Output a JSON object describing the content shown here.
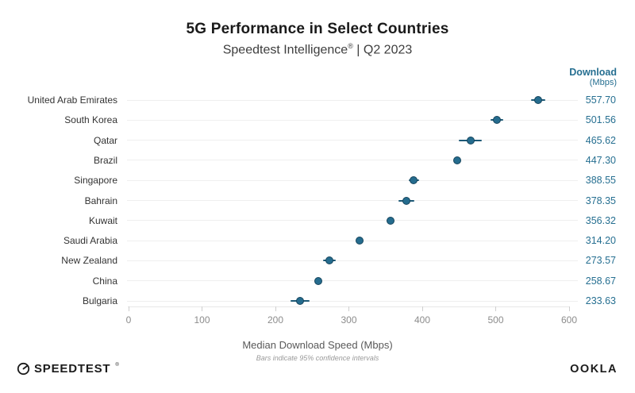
{
  "header": {
    "subtitle_brand": "Speedtest Intelligence",
    "subtitle_mark": "®",
    "subtitle_period": " | Q2 2023"
  },
  "value_column": {
    "title": "Download",
    "unit": "(Mbps)"
  },
  "x_axis": {
    "label": "Median Download Speed (Mbps)",
    "caption": "Bars indicate 95% confidence intervals",
    "ticks": [
      0,
      100,
      200,
      300,
      400,
      500,
      600
    ]
  },
  "footer": {
    "speedtest_wordmark": "SPEEDTEST",
    "speedtest_mark": "®",
    "ookla_wordmark": "OOKLA"
  },
  "colors": {
    "accent": "#266F91",
    "dot_fill": "#256C8E",
    "dot_border": "#16455D",
    "whisker": "#1D5976",
    "gridline": "#EFEFEF",
    "tick_label": "#8C8C8C",
    "axis_label": "#595959",
    "caption": "#9A9A9A",
    "title": "#1A1A1A",
    "subtitle": "#3D3D3D",
    "label": "#333333"
  },
  "chart_data": {
    "type": "scatter",
    "subtype": "horizontal-dot-plot-with-error-bars",
    "title": "5G Performance in Select Countries",
    "subtitle": "Speedtest Intelligence® | Q2 2023",
    "categories": [
      "United Arab Emirates",
      "South Korea",
      "Qatar",
      "Brazil",
      "Singapore",
      "Bahrain",
      "Kuwait",
      "Saudi Arabia",
      "New Zealand",
      "China",
      "Bulgaria"
    ],
    "values": [
      557.7,
      501.56,
      465.62,
      447.3,
      388.55,
      378.35,
      356.32,
      314.2,
      273.57,
      258.67,
      233.63
    ],
    "ci95_halfwidth": [
      10,
      9,
      16,
      3,
      7,
      11,
      5,
      3,
      9,
      4,
      13
    ],
    "value_column_header": "Download (Mbps)",
    "xlabel": "Median Download Speed (Mbps)",
    "annotation": "Bars indicate 95% confidence intervals",
    "xlim": [
      0,
      600
    ],
    "x_ticks": [
      0,
      100,
      200,
      300,
      400,
      500,
      600
    ],
    "grid": "horizontal row gridlines, light gray",
    "legend": "none"
  }
}
